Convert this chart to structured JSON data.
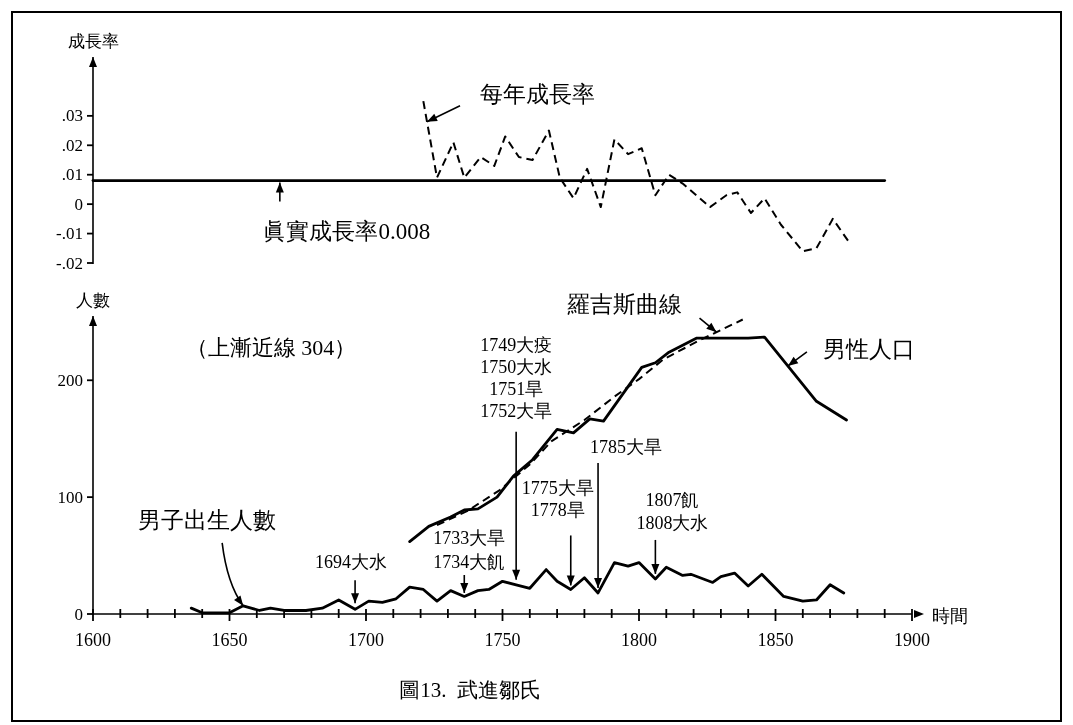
{
  "chart_data": [
    {
      "type": "line",
      "ylabel": "成長率",
      "xlim": [
        1600,
        1900
      ],
      "ylim": [
        -0.02,
        0.05
      ],
      "yticks": [
        {
          "value": -0.02,
          "label": "-.02"
        },
        {
          "value": -0.01,
          "label": "-.01"
        },
        0,
        {
          "value": 0.01,
          "label": ".01"
        },
        {
          "value": 0.02,
          "label": ".02"
        },
        {
          "value": 0.03,
          "label": ".03"
        }
      ],
      "tick_labels": "y",
      "series": [
        {
          "name": "每年成長率",
          "color": "#000000",
          "line_style": "dashed",
          "x": [
            1721,
            1726,
            1732,
            1736,
            1742,
            1747,
            1751,
            1756,
            1761,
            1767,
            1771,
            1776,
            1781,
            1786,
            1791,
            1796,
            1801,
            1806,
            1811,
            1816,
            1826,
            1832,
            1836,
            1841,
            1846,
            1852,
            1860,
            1865,
            1871,
            1877
          ],
          "values": [
            0.035,
            0.009,
            0.021,
            0.009,
            0.016,
            0.013,
            0.023,
            0.016,
            0.015,
            0.025,
            0.009,
            0.002,
            0.012,
            -0.001,
            0.022,
            0.017,
            0.019,
            0.003,
            0.01,
            0.007,
            -0.001,
            0.003,
            0.004,
            -0.003,
            0.002,
            -0.007,
            -0.016,
            -0.015,
            -0.005,
            -0.013
          ]
        },
        {
          "name": "眞實成長率0.008",
          "color": "#000000",
          "line_style": "solid",
          "x": [
            1600,
            1890
          ],
          "values": [
            0.008,
            0.008
          ]
        }
      ]
    },
    {
      "type": "line",
      "title": "圖13.  武進鄒氏",
      "xlabel": "時間",
      "ylabel": "人數",
      "xlim": [
        1600,
        1900
      ],
      "ylim": [
        0,
        255
      ],
      "xticks": [
        1600,
        {
          "value": 1610,
          "label": null
        },
        {
          "value": 1620,
          "label": null
        },
        {
          "value": 1630,
          "label": null
        },
        {
          "value": 1640,
          "label": null
        },
        1650,
        {
          "value": 1660,
          "label": null
        },
        {
          "value": 1670,
          "label": null
        },
        {
          "value": 1680,
          "label": null
        },
        {
          "value": 1690,
          "label": null
        },
        1700,
        {
          "value": 1710,
          "label": null
        },
        {
          "value": 1720,
          "label": null
        },
        {
          "value": 1730,
          "label": null
        },
        {
          "value": 1740,
          "label": null
        },
        1750,
        {
          "value": 1760,
          "label": null
        },
        {
          "value": 1770,
          "label": null
        },
        {
          "value": 1780,
          "label": null
        },
        {
          "value": 1790,
          "label": null
        },
        1800,
        {
          "value": 1810,
          "label": null
        },
        {
          "value": 1820,
          "label": null
        },
        {
          "value": 1830,
          "label": null
        },
        {
          "value": 1840,
          "label": null
        },
        1850,
        {
          "value": 1860,
          "label": null
        },
        {
          "value": 1870,
          "label": null
        },
        {
          "value": 1880,
          "label": null
        },
        {
          "value": 1890,
          "label": null
        },
        1900
      ],
      "yticks": [
        0,
        100,
        200
      ],
      "series": [
        {
          "name": "男性人口",
          "color": "#000000",
          "line_style": "solid",
          "x": [
            1716,
            1723,
            1731,
            1736,
            1741,
            1748,
            1754,
            1761,
            1770,
            1776,
            1782,
            1787,
            1801,
            1806,
            1811,
            1821,
            1840,
            1846,
            1865,
            1876
          ],
          "values": [
            62,
            75,
            83,
            89,
            90,
            100,
            118,
            132,
            158,
            155,
            167,
            165,
            211,
            215,
            224,
            236,
            236,
            237,
            182,
            166
          ]
        },
        {
          "name": "羅吉斯曲線",
          "color": "#000000",
          "line_style": "dashed",
          "x": [
            1726,
            1737,
            1749,
            1760,
            1768,
            1780,
            1791,
            1800,
            1809,
            1822,
            1838
          ],
          "values": [
            76,
            88,
            106,
            128,
            148,
            166,
            186,
            201,
            218,
            234,
            252
          ]
        },
        {
          "name": "男子出生人數",
          "color": "#000000",
          "line_style": "solid",
          "x": [
            1636,
            1640,
            1645,
            1650,
            1655,
            1661,
            1665,
            1670,
            1678,
            1684,
            1690,
            1696,
            1701,
            1706,
            1711,
            1716,
            1721,
            1726,
            1731,
            1736,
            1741,
            1745,
            1750,
            1755,
            1760,
            1766,
            1770,
            1775,
            1780,
            1785,
            1791,
            1796,
            1800,
            1806,
            1810,
            1816,
            1819,
            1827,
            1830,
            1835,
            1840,
            1845,
            1853,
            1860,
            1865,
            1870,
            1875
          ],
          "values": [
            5,
            1,
            1,
            1,
            7,
            3,
            5,
            3,
            3,
            5,
            12,
            4,
            11,
            10,
            13,
            23,
            21,
            11,
            20,
            15,
            20,
            21,
            28,
            25,
            22,
            38,
            28,
            21,
            31,
            18,
            44,
            41,
            44,
            30,
            40,
            33,
            34,
            27,
            32,
            35,
            24,
            34,
            15,
            11,
            12,
            25,
            18
          ]
        }
      ],
      "annotations": [
        "（上漸近線 304）",
        {
          "text": "1694大水",
          "x": 1696,
          "y": 4
        },
        {
          "text": "1733大旱\n1734大飢",
          "x": 1736,
          "y": 15
        },
        {
          "text": "1749大疫\n1750大水\n1751旱\n1752大旱",
          "x": 1755,
          "y": 25
        },
        {
          "text": "1775大旱\n1778旱",
          "x": 1775,
          "y": 21
        },
        {
          "text": "1785大旱",
          "x": 1785,
          "y": 18
        },
        {
          "text": "1807飢\n1808大水",
          "x": 1806,
          "y": 30
        }
      ]
    }
  ]
}
